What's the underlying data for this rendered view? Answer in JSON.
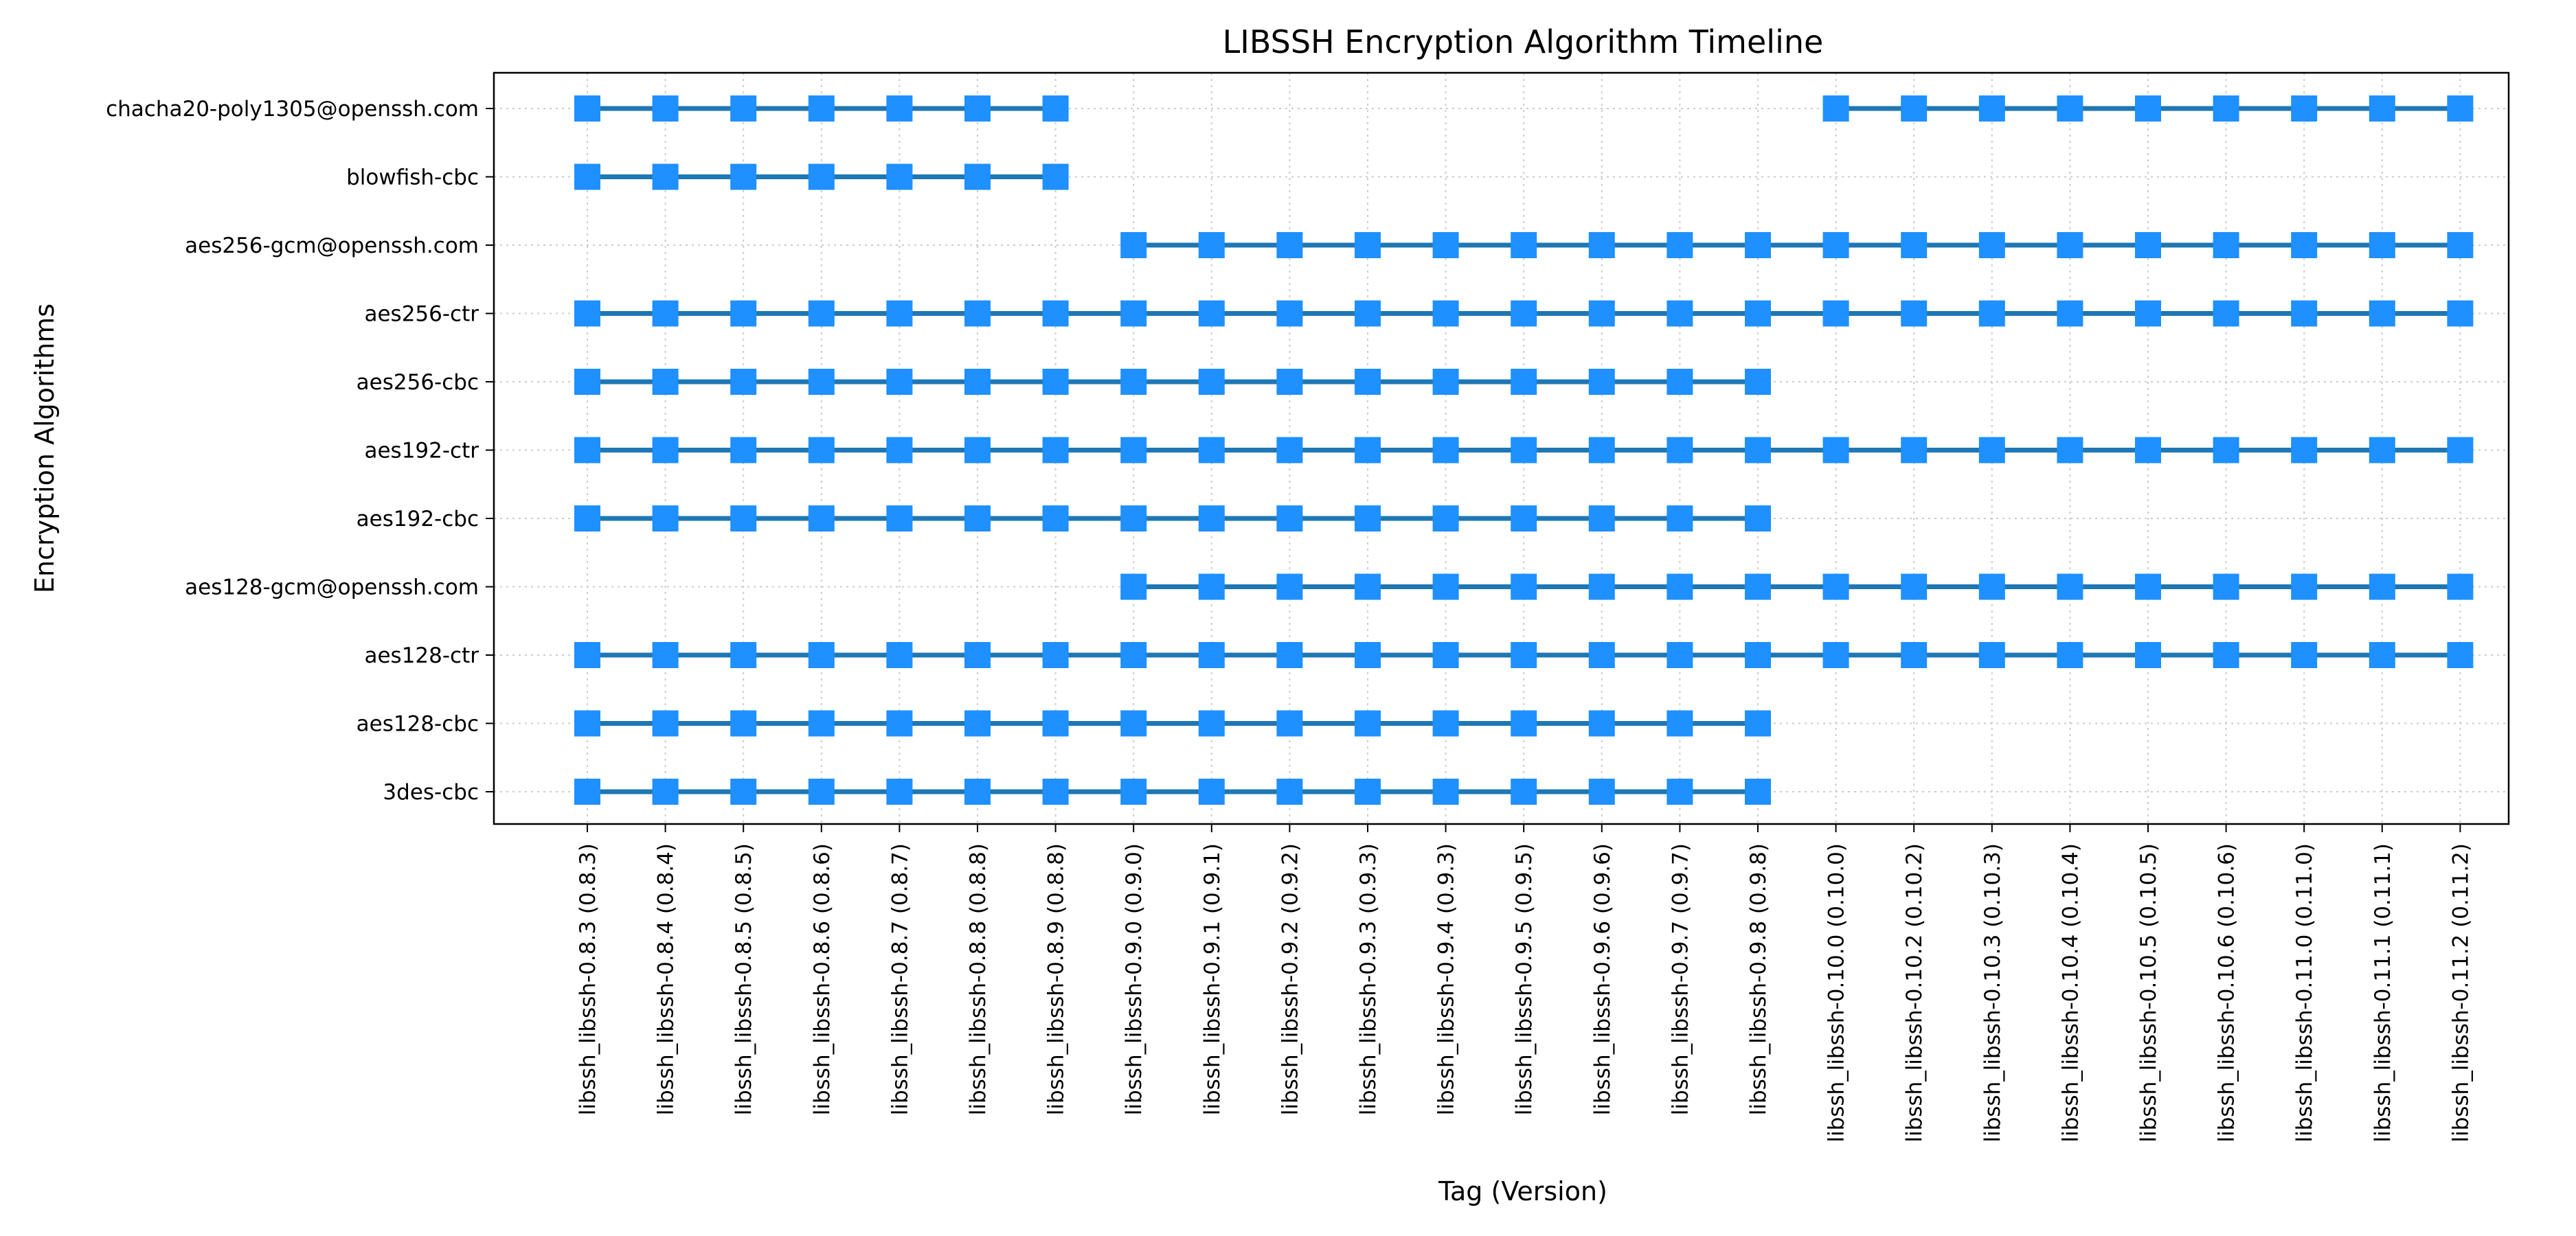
{
  "chart_data": {
    "type": "scatter",
    "title": "LIBSSH Encryption Algorithm Timeline",
    "xlabel": "Tag (Version)",
    "ylabel": "Encryption Algorithms",
    "grid": true,
    "categories": [
      "libssh_libssh-0.8.3 (0.8.3)",
      "libssh_libssh-0.8.4 (0.8.4)",
      "libssh_libssh-0.8.5 (0.8.5)",
      "libssh_libssh-0.8.6 (0.8.6)",
      "libssh_libssh-0.8.7 (0.8.7)",
      "libssh_libssh-0.8.8 (0.8.8)",
      "libssh_libssh-0.8.9 (0.8.8)",
      "libssh_libssh-0.9.0 (0.9.0)",
      "libssh_libssh-0.9.1 (0.9.1)",
      "libssh_libssh-0.9.2 (0.9.2)",
      "libssh_libssh-0.9.3 (0.9.3)",
      "libssh_libssh-0.9.4 (0.9.3)",
      "libssh_libssh-0.9.5 (0.9.5)",
      "libssh_libssh-0.9.6 (0.9.6)",
      "libssh_libssh-0.9.7 (0.9.7)",
      "libssh_libssh-0.9.8 (0.9.8)",
      "libssh_libssh-0.10.0 (0.10.0)",
      "libssh_libssh-0.10.2 (0.10.2)",
      "libssh_libssh-0.10.3 (0.10.3)",
      "libssh_libssh-0.10.4 (0.10.4)",
      "libssh_libssh-0.10.5 (0.10.5)",
      "libssh_libssh-0.10.6 (0.10.6)",
      "libssh_libssh-0.11.0 (0.11.0)",
      "libssh_libssh-0.11.1 (0.11.1)",
      "libssh_libssh-0.11.2 (0.11.2)"
    ],
    "algorithms": [
      "3des-cbc",
      "aes128-cbc",
      "aes128-ctr",
      "aes128-gcm@openssh.com",
      "aes192-cbc",
      "aes192-ctr",
      "aes256-cbc",
      "aes256-ctr",
      "aes256-gcm@openssh.com",
      "blowfish-cbc",
      "chacha20-poly1305@openssh.com"
    ],
    "presence": [
      {
        "algorithm": "3des-cbc",
        "ranges": [
          [
            0,
            15
          ]
        ]
      },
      {
        "algorithm": "aes128-cbc",
        "ranges": [
          [
            0,
            15
          ]
        ]
      },
      {
        "algorithm": "aes128-ctr",
        "ranges": [
          [
            0,
            24
          ]
        ]
      },
      {
        "algorithm": "aes128-gcm@openssh.com",
        "ranges": [
          [
            7,
            24
          ]
        ]
      },
      {
        "algorithm": "aes192-cbc",
        "ranges": [
          [
            0,
            15
          ]
        ]
      },
      {
        "algorithm": "aes192-ctr",
        "ranges": [
          [
            0,
            24
          ]
        ]
      },
      {
        "algorithm": "aes256-cbc",
        "ranges": [
          [
            0,
            15
          ]
        ]
      },
      {
        "algorithm": "aes256-ctr",
        "ranges": [
          [
            0,
            24
          ]
        ]
      },
      {
        "algorithm": "aes256-gcm@openssh.com",
        "ranges": [
          [
            7,
            24
          ]
        ]
      },
      {
        "algorithm": "blowfish-cbc",
        "ranges": [
          [
            0,
            6
          ]
        ]
      },
      {
        "algorithm": "chacha20-poly1305@openssh.com",
        "ranges": [
          [
            0,
            6
          ],
          [
            16,
            24
          ]
        ]
      }
    ],
    "colors": {
      "line": "#1f77b4",
      "marker": "#1e90ff",
      "grid": "#cccccc",
      "axes": "#000000"
    }
  }
}
